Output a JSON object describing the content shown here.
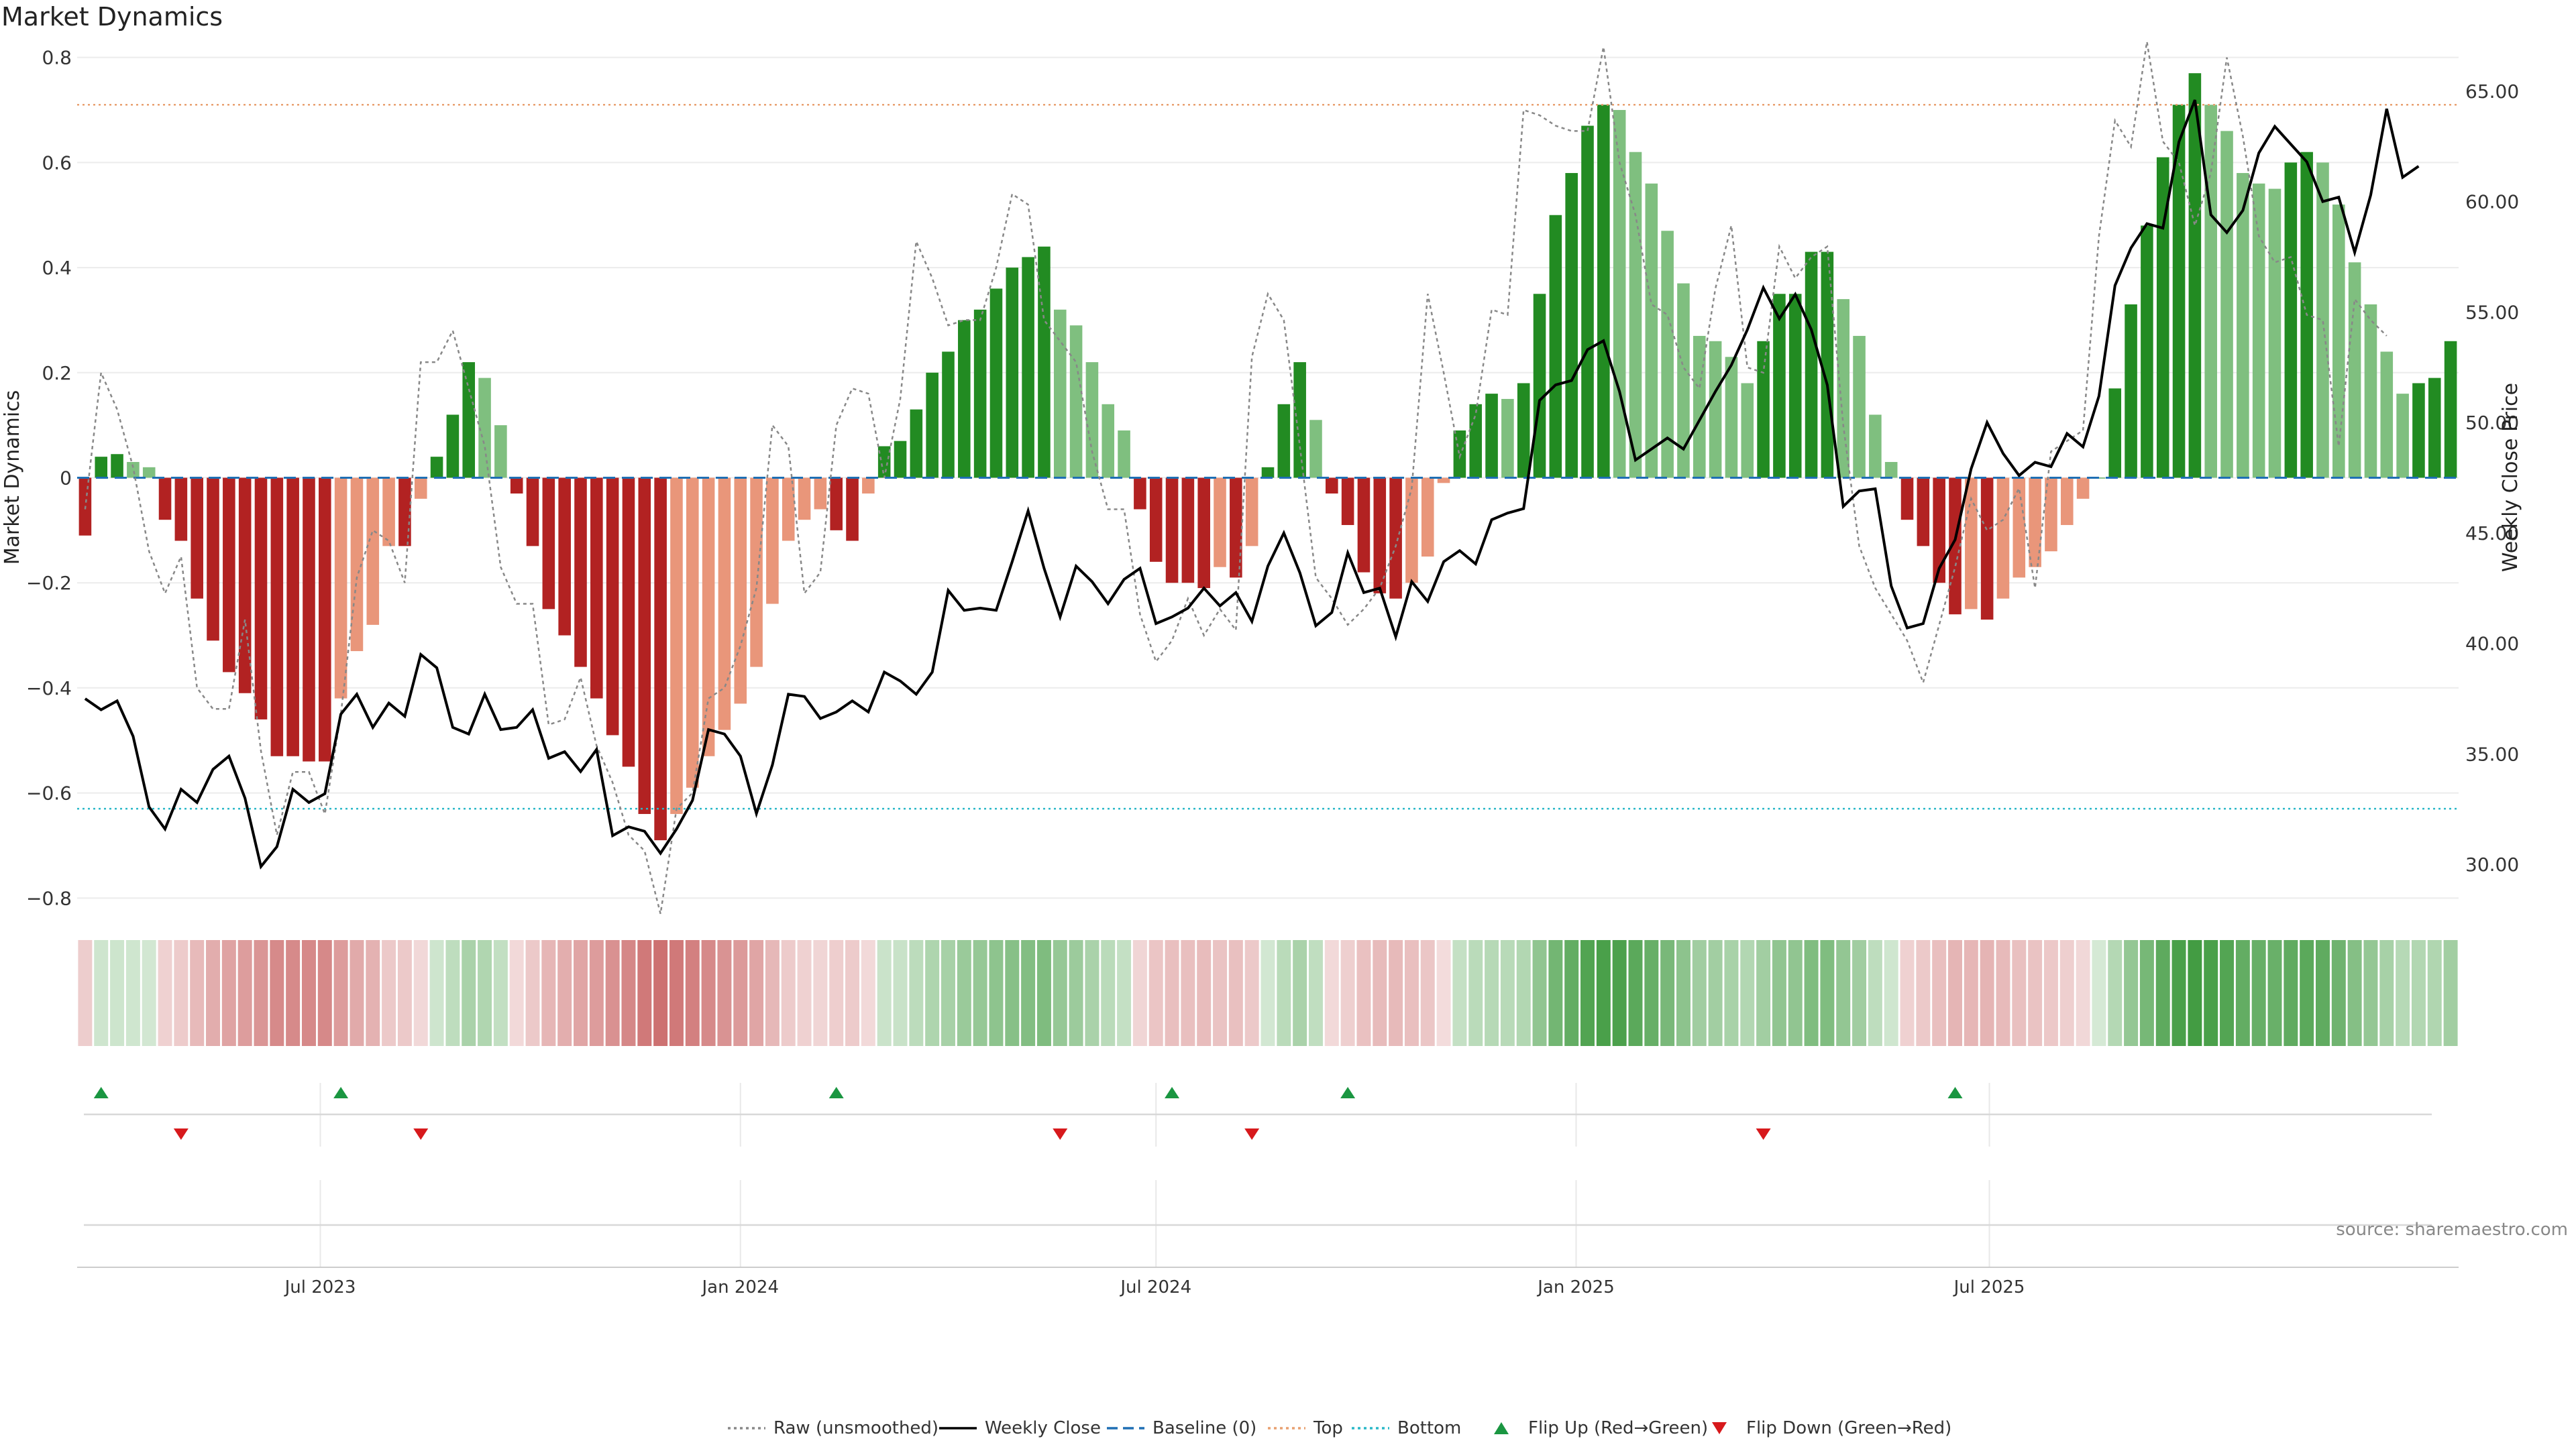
{
  "chart_data": {
    "type": "bar",
    "title": "Market Dynamics",
    "ylabel": "Market Dynamics",
    "y2label": "Weekly Close Price",
    "ylim": [
      -0.82,
      0.82
    ],
    "y2lim": [
      28.0,
      67.0
    ],
    "y_ticks": [
      0.8,
      0.6,
      0.4,
      0.2,
      0,
      -0.2,
      -0.4,
      -0.6,
      -0.8
    ],
    "y_tick_labels": [
      "0.8",
      "0.6",
      "0.4",
      "0.2",
      "0",
      "−0.2",
      "−0.4",
      "−0.6",
      "−0.8"
    ],
    "y2_ticks": [
      65,
      60,
      55,
      50,
      45,
      40,
      35,
      30
    ],
    "y2_tick_labels": [
      "65.00",
      "60.00",
      "55.00",
      "50.00",
      "45.00",
      "40.00",
      "35.00",
      "30.00"
    ],
    "x_start": "2023-03-20",
    "x_step_days": 7,
    "x_ticks": [
      {
        "date": "2023-07-01",
        "label": "Jul 2023"
      },
      {
        "date": "2024-01-01",
        "label": "Jan 2024"
      },
      {
        "date": "2024-07-01",
        "label": "Jul 2024"
      },
      {
        "date": "2025-01-01",
        "label": "Jan 2025"
      },
      {
        "date": "2025-07-01",
        "label": "Jul 2025"
      }
    ],
    "top_threshold": 0.71,
    "bottom_threshold": -0.63,
    "baseline": 0,
    "market_dynamics": [
      -0.11,
      0.04,
      0.045,
      0.03,
      0.02,
      -0.08,
      -0.12,
      -0.23,
      -0.31,
      -0.37,
      -0.41,
      -0.46,
      -0.53,
      -0.53,
      -0.54,
      -0.54,
      -0.42,
      -0.33,
      -0.28,
      -0.13,
      -0.13,
      -0.04,
      0.04,
      0.12,
      0.22,
      0.19,
      0.1,
      -0.03,
      -0.13,
      -0.25,
      -0.3,
      -0.36,
      -0.42,
      -0.49,
      -0.55,
      -0.64,
      -0.69,
      -0.64,
      -0.59,
      -0.53,
      -0.48,
      -0.43,
      -0.36,
      -0.24,
      -0.12,
      -0.08,
      -0.06,
      -0.1,
      -0.12,
      -0.03,
      0.06,
      0.07,
      0.13,
      0.2,
      0.24,
      0.3,
      0.32,
      0.36,
      0.4,
      0.42,
      0.44,
      0.32,
      0.29,
      0.22,
      0.14,
      0.09,
      -0.06,
      -0.16,
      -0.2,
      -0.2,
      -0.21,
      -0.17,
      -0.19,
      -0.13,
      0.02,
      0.14,
      0.22,
      0.11,
      -0.03,
      -0.09,
      -0.18,
      -0.22,
      -0.23,
      -0.2,
      -0.15,
      -0.01,
      0.09,
      0.14,
      0.16,
      0.15,
      0.18,
      0.35,
      0.5,
      0.58,
      0.67,
      0.71,
      0.7,
      0.62,
      0.56,
      0.47,
      0.37,
      0.27,
      0.26,
      0.23,
      0.18,
      0.26,
      0.35,
      0.35,
      0.43,
      0.43,
      0.34,
      0.27,
      0.12,
      0.03,
      -0.08,
      -0.13,
      -0.2,
      -0.26,
      -0.25,
      -0.27,
      -0.23,
      -0.19,
      -0.17,
      -0.14,
      -0.09,
      -0.04,
      0.0,
      0.17,
      0.33,
      0.48,
      0.61,
      0.71,
      0.77,
      0.71,
      0.66,
      0.58,
      0.56,
      0.55,
      0.6,
      0.62,
      0.6,
      0.52,
      0.41,
      0.33,
      0.24,
      0.16,
      0.18,
      0.19,
      0.26
    ],
    "raw_unsmoothed": [
      -0.06,
      0.2,
      0.13,
      0.02,
      -0.14,
      -0.22,
      -0.15,
      -0.4,
      -0.44,
      -0.44,
      -0.27,
      -0.52,
      -0.68,
      -0.56,
      -0.56,
      -0.64,
      -0.45,
      -0.19,
      -0.1,
      -0.12,
      -0.2,
      0.22,
      0.22,
      0.28,
      0.17,
      0.06,
      -0.17,
      -0.24,
      -0.24,
      -0.47,
      -0.46,
      -0.38,
      -0.51,
      -0.58,
      -0.68,
      -0.71,
      -0.83,
      -0.63,
      -0.6,
      -0.42,
      -0.4,
      -0.32,
      -0.21,
      0.1,
      0.06,
      -0.22,
      -0.18,
      0.1,
      0.17,
      0.16,
      0.0,
      0.15,
      0.45,
      0.38,
      0.29,
      0.3,
      0.3,
      0.4,
      0.54,
      0.52,
      0.3,
      0.26,
      0.22,
      0.05,
      -0.06,
      -0.06,
      -0.26,
      -0.35,
      -0.31,
      -0.23,
      -0.3,
      -0.25,
      -0.29,
      0.23,
      0.35,
      0.3,
      0.06,
      -0.19,
      -0.23,
      -0.28,
      -0.25,
      -0.21,
      -0.13,
      -0.02,
      0.35,
      0.2,
      0.04,
      0.12,
      0.32,
      0.31,
      0.7,
      0.69,
      0.67,
      0.66,
      0.66,
      0.82,
      0.6,
      0.5,
      0.33,
      0.31,
      0.21,
      0.17,
      0.36,
      0.48,
      0.21,
      0.2,
      0.44,
      0.38,
      0.42,
      0.44,
      0.1,
      -0.13,
      -0.21,
      -0.26,
      -0.31,
      -0.39,
      -0.28,
      -0.17,
      -0.04,
      -0.1,
      -0.08,
      -0.02,
      -0.21,
      0.05,
      0.07,
      0.09,
      0.46,
      0.68,
      0.63,
      0.83,
      0.64,
      0.6,
      0.48,
      0.58,
      0.8,
      0.65,
      0.46,
      0.41,
      0.42,
      0.31,
      0.3,
      0.06,
      0.34,
      0.3,
      0.27
    ]
  },
  "legend": {
    "items": [
      {
        "label": "Raw (unsmoothed)",
        "icon": "dotted-gray-line",
        "color": "#888888"
      },
      {
        "label": "Weekly Close",
        "icon": "solid-black-line",
        "color": "#000000"
      },
      {
        "label": "Baseline (0)",
        "icon": "dashed-blue-line",
        "color": "#1f6fb4"
      },
      {
        "label": "Top",
        "icon": "dotted-orange-line",
        "color": "#e8a070"
      },
      {
        "label": "Bottom",
        "icon": "dotted-cyan-line",
        "color": "#2ab8c8"
      },
      {
        "label": "Flip Up (Red→Green)",
        "icon": "green-up-triangle",
        "color": "#1a9641"
      },
      {
        "label": "Flip Down (Green→Red)",
        "icon": "red-down-triangle",
        "color": "#d7191c"
      }
    ]
  },
  "source_label": "source: sharemaestro.com",
  "colors": {
    "strong_green": "#228b22",
    "light_green": "#7fbf7f",
    "strong_red": "#b22222",
    "light_red": "#e9967a",
    "weekly_close": "#000000",
    "raw": "#888888"
  },
  "flip_up_dates": [
    "2023-03-27",
    "2023-07-10",
    "2024-02-12",
    "2024-07-08",
    "2024-09-23",
    "2025-06-16"
  ],
  "flip_down_dates": [
    "2023-05-01",
    "2023-08-14",
    "2024-05-20",
    "2024-08-12",
    "2025-03-24"
  ]
}
